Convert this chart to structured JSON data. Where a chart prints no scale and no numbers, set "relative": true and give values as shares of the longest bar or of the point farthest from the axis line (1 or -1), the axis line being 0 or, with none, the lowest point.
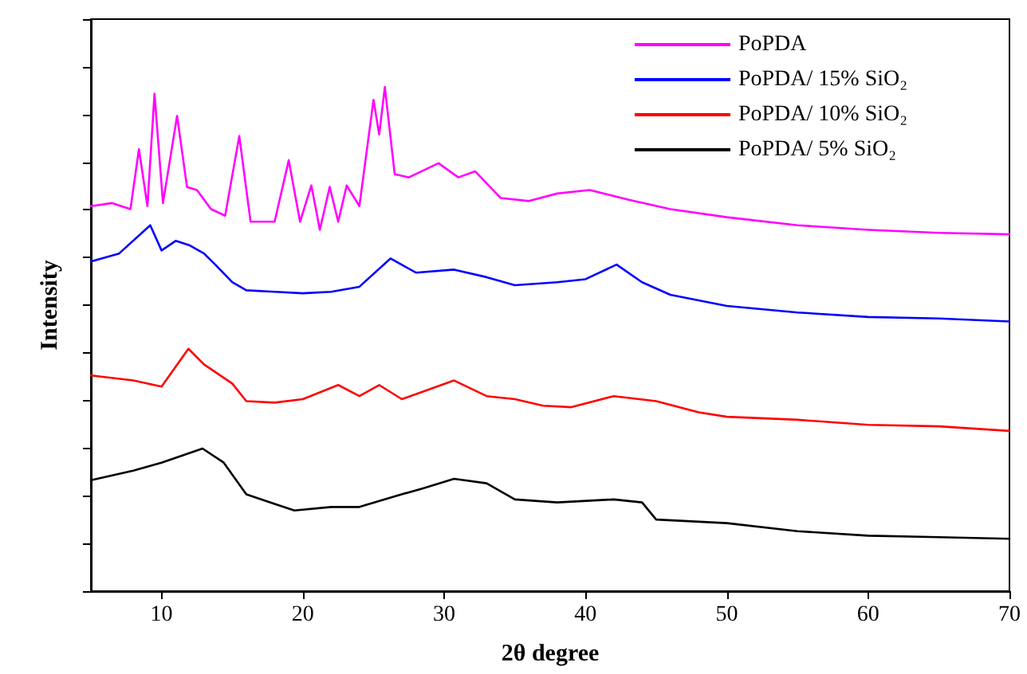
{
  "chart_data": {
    "type": "line",
    "relative": true,
    "xlabel": "2θ degree",
    "ylabel": "Intensity",
    "xlim": [
      5,
      70
    ],
    "xticks": [
      10,
      20,
      30,
      40,
      50,
      60,
      70
    ],
    "grid": false,
    "legend": "top right",
    "marker": "none",
    "line_style": "solid",
    "series": [
      {
        "name": "PoPDA",
        "color": "#ff00ff",
        "x": [
          5,
          6.5,
          7.8,
          8.4,
          9.0,
          9.5,
          10.1,
          11.1,
          11.8,
          12.5,
          13.5,
          14.5,
          15.5,
          16.3,
          18,
          19.0,
          19.8,
          20.6,
          21.2,
          21.9,
          22.5,
          23.1,
          24.0,
          25.0,
          25.4,
          25.8,
          26.5,
          27.5,
          29.6,
          31,
          32.2,
          34,
          36,
          38,
          40.3,
          43,
          46,
          50,
          55,
          60,
          65,
          70
        ],
        "values": [
          0.764,
          0.77,
          0.758,
          0.877,
          0.764,
          0.987,
          0.77,
          0.943,
          0.802,
          0.796,
          0.758,
          0.745,
          0.903,
          0.733,
          0.733,
          0.855,
          0.733,
          0.805,
          0.717,
          0.802,
          0.733,
          0.805,
          0.764,
          0.975,
          0.906,
          1.0,
          0.827,
          0.821,
          0.849,
          0.821,
          0.833,
          0.78,
          0.774,
          0.789,
          0.796,
          0.777,
          0.758,
          0.742,
          0.726,
          0.717,
          0.711,
          0.708
        ]
      },
      {
        "name": "PoPDA/ 15% SiO₂",
        "color": "#0000ff",
        "x": [
          5,
          7,
          9.2,
          10,
          11,
          12,
          13,
          13.8,
          15,
          16,
          18,
          20,
          22,
          24,
          26.2,
          28,
          30.7,
          33,
          35,
          38,
          40,
          42.2,
          44,
          46,
          50,
          55,
          60,
          65,
          70
        ],
        "values": [
          0.654,
          0.67,
          0.726,
          0.676,
          0.695,
          0.686,
          0.67,
          0.648,
          0.613,
          0.597,
          0.594,
          0.591,
          0.594,
          0.604,
          0.66,
          0.632,
          0.638,
          0.623,
          0.607,
          0.613,
          0.619,
          0.648,
          0.613,
          0.588,
          0.566,
          0.553,
          0.544,
          0.541,
          0.535
        ]
      },
      {
        "name": "PoPDA/ 10% SiO₂",
        "color": "#ff0000",
        "x": [
          5,
          8,
          10,
          11.9,
          13,
          15,
          16,
          18,
          20,
          22.5,
          24,
          25.4,
          27,
          30.7,
          33,
          35,
          37,
          39,
          42,
          45,
          48,
          50,
          55,
          60,
          65,
          70
        ],
        "values": [
          0.428,
          0.418,
          0.406,
          0.481,
          0.45,
          0.412,
          0.377,
          0.374,
          0.381,
          0.409,
          0.387,
          0.409,
          0.381,
          0.418,
          0.387,
          0.381,
          0.368,
          0.365,
          0.387,
          0.377,
          0.355,
          0.346,
          0.34,
          0.33,
          0.327,
          0.318
        ]
      },
      {
        "name": "PoPDA/ 5% SiO₂",
        "color": "#000000",
        "x": [
          5,
          8,
          10,
          12.9,
          14.4,
          16,
          18,
          19.4,
          22,
          24,
          26.6,
          28.5,
          30.7,
          33,
          35,
          38,
          42,
          44,
          45,
          50,
          55,
          60,
          65,
          70
        ],
        "values": [
          0.22,
          0.239,
          0.255,
          0.283,
          0.255,
          0.192,
          0.173,
          0.16,
          0.167,
          0.167,
          0.189,
          0.204,
          0.223,
          0.214,
          0.182,
          0.176,
          0.182,
          0.176,
          0.142,
          0.135,
          0.119,
          0.11,
          0.107,
          0.104
        ]
      }
    ]
  }
}
